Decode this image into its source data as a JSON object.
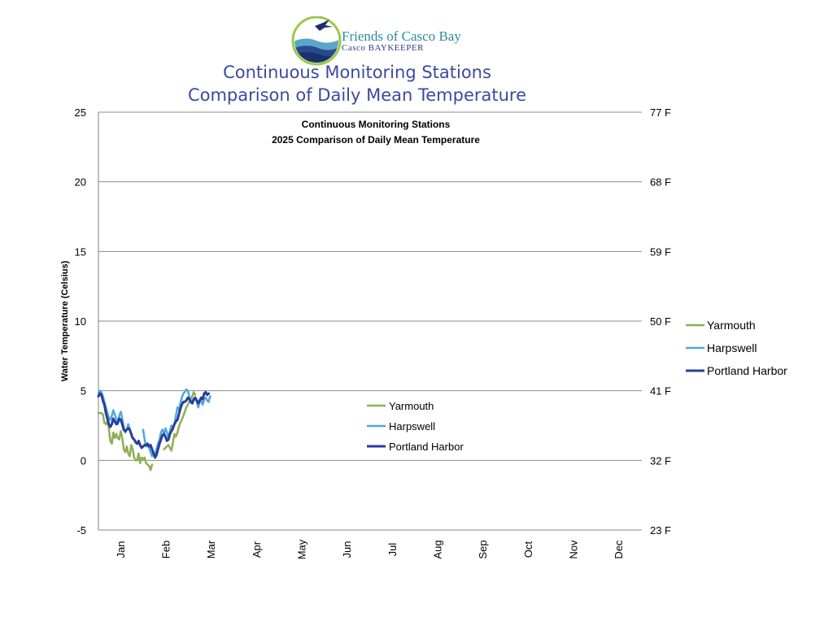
{
  "header": {
    "org_line1": "Friends of Casco Bay",
    "org_line2": "Casco BAYKEEPER",
    "title_line1": "Continuous Monitoring Stations",
    "title_line2": "Comparison of Daily Mean Temperature"
  },
  "chart_data": {
    "type": "line",
    "title_lines": [
      "Continuous Monitoring Stations",
      "2025 Comparison of Daily Mean Temperature"
    ],
    "xlabel": "",
    "ylabel": "Water Temperature (Celsius)",
    "ylim": [
      -5,
      25
    ],
    "y_ticks": [
      -5,
      0,
      5,
      10,
      15,
      20,
      25
    ],
    "y2_ticks": [
      "23 F",
      "32 F",
      "41 F",
      "50 F",
      "59 F",
      "68 F",
      "77 F"
    ],
    "x_ticks": [
      "Jan",
      "Feb",
      "Mar",
      "Apr",
      "May",
      "Jun",
      "Jul",
      "Aug",
      "Sep",
      "Oct",
      "Nov",
      "Dec"
    ],
    "grid": true,
    "legend_position": "center",
    "series": [
      {
        "name": "Yarmouth",
        "color": "#8db052",
        "points": [
          [
            1,
            3.4
          ],
          [
            3,
            3.4
          ],
          [
            4,
            3.3
          ],
          [
            5,
            2.7
          ],
          [
            6,
            2.6
          ],
          [
            7,
            2.8
          ],
          [
            8,
            2.3
          ],
          [
            9,
            1.4
          ],
          [
            10,
            1.2
          ],
          [
            11,
            2.0
          ],
          [
            12,
            1.6
          ],
          [
            13,
            1.9
          ],
          [
            14,
            1.6
          ],
          [
            15,
            1.5
          ],
          [
            16,
            2.1
          ],
          [
            17,
            1.6
          ],
          [
            18,
            0.8
          ],
          [
            19,
            0.6
          ],
          [
            20,
            1.0
          ],
          [
            21,
            0.5
          ],
          [
            22,
            0.3
          ],
          [
            23,
            1.1
          ],
          [
            24,
            0.8
          ],
          [
            25,
            0.2
          ],
          [
            26,
            0.0
          ],
          [
            27,
            0.0
          ],
          [
            28,
            0.5
          ],
          [
            29,
            -0.2
          ],
          [
            30,
            0.2
          ],
          [
            31,
            0.1
          ],
          [
            32,
            0.2
          ],
          [
            33,
            -0.2
          ],
          [
            34,
            -0.3
          ],
          [
            35,
            -0.4
          ],
          [
            36,
            -0.7
          ],
          [
            37,
            -0.3
          ]
        ]
      },
      {
        "name": "Yarmouth",
        "color": "#8db052",
        "points": [
          [
            45,
            0.8
          ],
          [
            46,
            0.9
          ],
          [
            47,
            1.0
          ],
          [
            48,
            1.1
          ],
          [
            49,
            0.9
          ],
          [
            50,
            0.7
          ],
          [
            51,
            1.3
          ],
          [
            52,
            1.9
          ],
          [
            53,
            1.7
          ],
          [
            54,
            2.0
          ],
          [
            55,
            2.4
          ],
          [
            56,
            2.7
          ],
          [
            57,
            2.9
          ],
          [
            58,
            3.2
          ],
          [
            59,
            3.5
          ],
          [
            60,
            3.8
          ],
          [
            61,
            4.0
          ],
          [
            62,
            4.2
          ],
          [
            63,
            4.4
          ],
          [
            64,
            4.6
          ],
          [
            65,
            4.9
          ],
          [
            66,
            4.7
          ]
        ]
      },
      {
        "name": "Harpswell",
        "color": "#4fa8dc",
        "points": [
          [
            1,
            4.8
          ],
          [
            2,
            5.0
          ],
          [
            3,
            4.9
          ],
          [
            4,
            4.6
          ],
          [
            5,
            4.2
          ],
          [
            6,
            3.8
          ],
          [
            7,
            3.4
          ],
          [
            8,
            3.1
          ],
          [
            9,
            2.9
          ],
          [
            10,
            3.2
          ],
          [
            11,
            3.6
          ],
          [
            12,
            3.3
          ],
          [
            13,
            3.0
          ],
          [
            14,
            2.6
          ],
          [
            15,
            3.2
          ],
          [
            16,
            3.5
          ],
          [
            17,
            3.0
          ],
          [
            18,
            2.4
          ],
          [
            19,
            2.0
          ],
          [
            20,
            2.2
          ],
          [
            21,
            2.6
          ],
          [
            22,
            2.3
          ]
        ]
      },
      {
        "name": "Harpswell",
        "color": "#4fa8dc",
        "points": [
          [
            31,
            2.2
          ],
          [
            32,
            1.5
          ],
          [
            33,
            1.0
          ],
          [
            34,
            1.1
          ],
          [
            35,
            0.9
          ],
          [
            36,
            0.6
          ],
          [
            37,
            0.3
          ],
          [
            38,
            0.5
          ],
          [
            39,
            0.4
          ],
          [
            40,
            0.8
          ],
          [
            41,
            1.2
          ],
          [
            42,
            1.5
          ],
          [
            43,
            2.0
          ],
          [
            44,
            2.2
          ],
          [
            45,
            1.9
          ],
          [
            46,
            2.3
          ],
          [
            47,
            2.0
          ],
          [
            48,
            1.6
          ],
          [
            49,
            2.1
          ],
          [
            50,
            2.5
          ],
          [
            51,
            2.4
          ],
          [
            52,
            2.6
          ],
          [
            53,
            3.2
          ],
          [
            54,
            3.8
          ],
          [
            55,
            3.6
          ],
          [
            56,
            4.1
          ],
          [
            57,
            4.5
          ],
          [
            58,
            4.8
          ],
          [
            59,
            4.9
          ],
          [
            60,
            5.1
          ],
          [
            61,
            5.0
          ],
          [
            62,
            4.6
          ],
          [
            63,
            4.3
          ],
          [
            64,
            4.1
          ],
          [
            65,
            4.3
          ],
          [
            66,
            4.5
          ],
          [
            67,
            4.2
          ],
          [
            68,
            3.8
          ],
          [
            69,
            4.2
          ],
          [
            70,
            4.3
          ],
          [
            71,
            4.0
          ],
          [
            72,
            4.4
          ],
          [
            73,
            4.5
          ],
          [
            74,
            4.3
          ],
          [
            75,
            4.2
          ],
          [
            76,
            4.6
          ]
        ]
      },
      {
        "name": "Portland Harbor",
        "color": "#2a3d9c",
        "points": [
          [
            1,
            4.6
          ],
          [
            2,
            4.8
          ],
          [
            3,
            4.7
          ],
          [
            4,
            4.3
          ],
          [
            5,
            4.0
          ],
          [
            6,
            3.4
          ],
          [
            7,
            3.0
          ],
          [
            8,
            2.6
          ],
          [
            9,
            2.4
          ],
          [
            10,
            2.6
          ],
          [
            11,
            3.0
          ],
          [
            12,
            2.8
          ],
          [
            13,
            2.6
          ],
          [
            14,
            2.7
          ],
          [
            15,
            3.0
          ],
          [
            16,
            2.9
          ],
          [
            17,
            2.6
          ],
          [
            18,
            2.2
          ],
          [
            19,
            2.1
          ],
          [
            20,
            2.2
          ],
          [
            21,
            2.3
          ],
          [
            22,
            2.2
          ],
          [
            23,
            1.9
          ],
          [
            24,
            1.6
          ],
          [
            25,
            1.5
          ],
          [
            26,
            1.3
          ],
          [
            27,
            1.2
          ],
          [
            28,
            1.4
          ],
          [
            29,
            1.1
          ],
          [
            30,
            0.9
          ],
          [
            31,
            1.0
          ],
          [
            32,
            1.1
          ],
          [
            33,
            1.1
          ],
          [
            34,
            1.2
          ],
          [
            35,
            1.0
          ],
          [
            36,
            1.1
          ],
          [
            37,
            0.8
          ],
          [
            38,
            0.5
          ],
          [
            39,
            0.2
          ],
          [
            40,
            0.4
          ],
          [
            41,
            0.8
          ],
          [
            42,
            1.2
          ],
          [
            43,
            1.5
          ],
          [
            44,
            1.8
          ],
          [
            45,
            1.9
          ],
          [
            46,
            1.7
          ],
          [
            47,
            1.4
          ],
          [
            48,
            1.5
          ],
          [
            49,
            1.9
          ],
          [
            50,
            2.1
          ],
          [
            51,
            2.3
          ],
          [
            52,
            2.6
          ],
          [
            53,
            2.8
          ],
          [
            54,
            2.9
          ],
          [
            55,
            3.3
          ],
          [
            56,
            3.7
          ],
          [
            57,
            4.0
          ],
          [
            58,
            4.2
          ],
          [
            59,
            4.2
          ],
          [
            60,
            4.3
          ],
          [
            61,
            4.5
          ],
          [
            62,
            4.4
          ],
          [
            63,
            4.2
          ],
          [
            64,
            4.1
          ],
          [
            65,
            4.4
          ],
          [
            66,
            4.5
          ],
          [
            67,
            4.3
          ],
          [
            68,
            4.1
          ],
          [
            69,
            4.3
          ],
          [
            70,
            4.5
          ],
          [
            71,
            4.4
          ],
          [
            72,
            4.8
          ],
          [
            73,
            4.9
          ],
          [
            74,
            4.7
          ],
          [
            75,
            4.8
          ]
        ]
      }
    ],
    "legend_inner": [
      {
        "name": "Yarmouth",
        "color": "#8db052"
      },
      {
        "name": "Harpswell",
        "color": "#4fa8dc"
      },
      {
        "name": "Portland Harbor",
        "color": "#2a3d9c"
      }
    ],
    "legend_outer": [
      {
        "name": "Yarmouth",
        "color": "#8db052"
      },
      {
        "name": "Harpswell",
        "color": "#4fa8dc"
      },
      {
        "name": "Portland Harbor",
        "color": "#2a3d9c"
      }
    ]
  }
}
